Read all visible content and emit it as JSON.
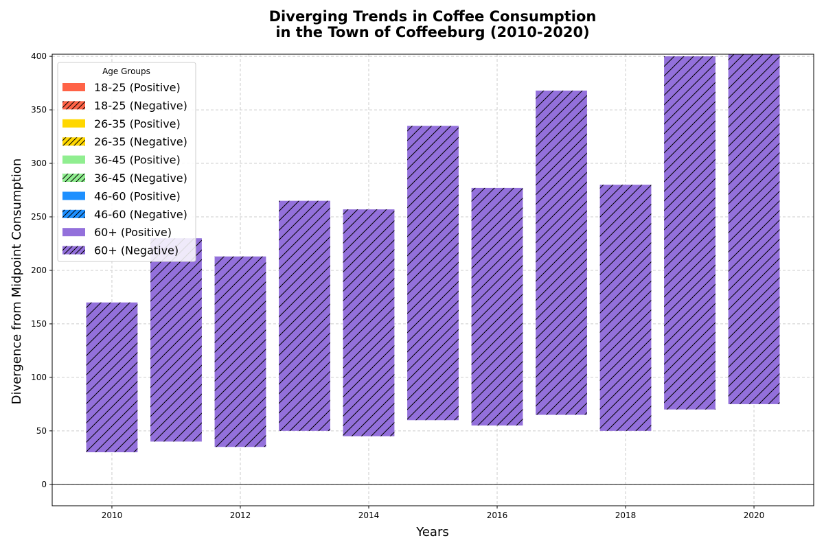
{
  "chart_data": {
    "type": "bar",
    "title_lines": [
      "Diverging Trends in Coffee Consumption",
      "in the Town of Coffeeburg (2010-2020)"
    ],
    "xlabel": "Years",
    "ylabel": "Divergence from Midpoint Consumption",
    "x": [
      2010,
      2011,
      2012,
      2013,
      2014,
      2015,
      2016,
      2017,
      2018,
      2019,
      2020
    ],
    "x_ticks": [
      2010,
      2012,
      2014,
      2016,
      2018,
      2020
    ],
    "y_ticks": [
      0,
      50,
      100,
      150,
      200,
      250,
      300,
      350,
      400
    ],
    "xlim": [
      2009.07,
      2020.93
    ],
    "ylim": [
      -20,
      402
    ],
    "grid": true,
    "zero_line": true,
    "legend": {
      "title": "Age Groups",
      "position": "top-left",
      "entries": [
        {
          "label": "18-25 (Positive)",
          "color": "#FF6347",
          "hatch": false
        },
        {
          "label": "18-25 (Negative)",
          "color": "#FF6347",
          "hatch": true
        },
        {
          "label": "26-35 (Positive)",
          "color": "#FFD700",
          "hatch": false
        },
        {
          "label": "26-35 (Negative)",
          "color": "#FFD700",
          "hatch": true
        },
        {
          "label": "36-45 (Positive)",
          "color": "#90EE90",
          "hatch": false
        },
        {
          "label": "36-45 (Negative)",
          "color": "#90EE90",
          "hatch": true
        },
        {
          "label": "46-60 (Positive)",
          "color": "#1E90FF",
          "hatch": false
        },
        {
          "label": "46-60 (Negative)",
          "color": "#1E90FF",
          "hatch": true
        },
        {
          "label": "60+ (Positive)",
          "color": "#9370DB",
          "hatch": false
        },
        {
          "label": "60+ (Negative)",
          "color": "#9370DB",
          "hatch": true
        }
      ]
    },
    "series": [
      {
        "name": "60+ (Negative)",
        "color": "#9370DB",
        "hatch": true,
        "bottom": [
          30,
          40,
          35,
          50,
          45,
          60,
          55,
          65,
          50,
          70,
          75
        ],
        "top": [
          170,
          230,
          213,
          265,
          257,
          335,
          277,
          368,
          280,
          400,
          402
        ]
      }
    ]
  }
}
